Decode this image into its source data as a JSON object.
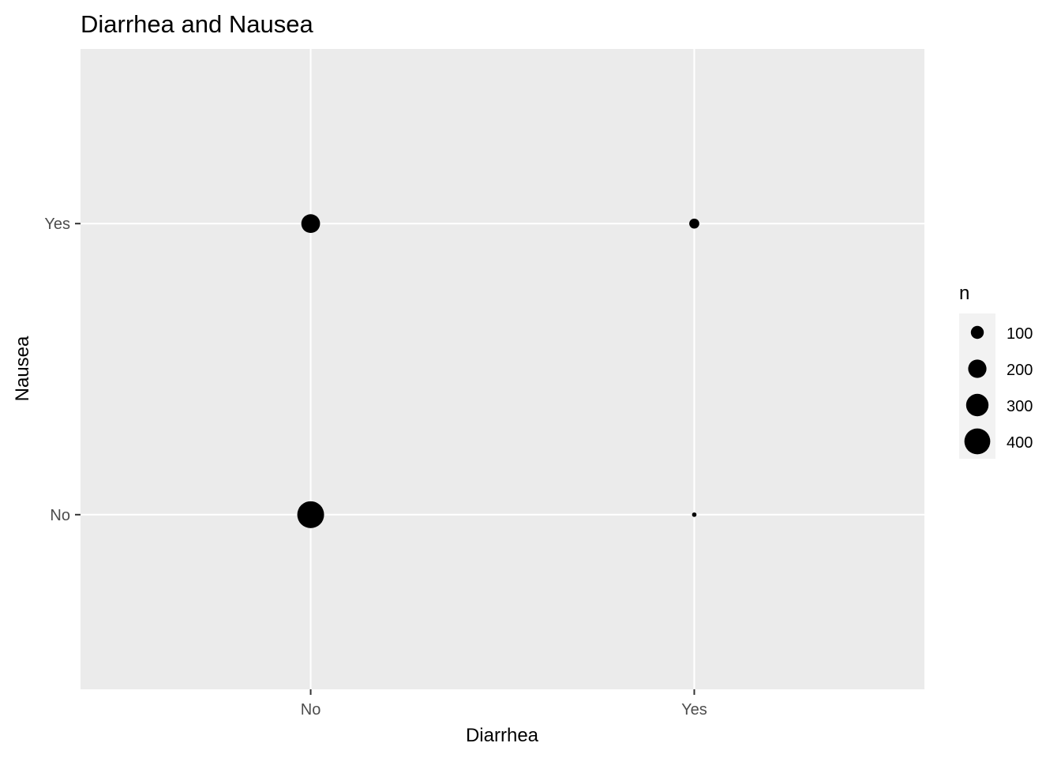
{
  "chart_data": {
    "type": "scatter",
    "title": "Diarrhea and Nausea",
    "xlabel": "Diarrhea",
    "ylabel": "Nausea",
    "x_categories": [
      "No",
      "Yes"
    ],
    "y_categories": [
      "No",
      "Yes"
    ],
    "grid": true,
    "points": [
      {
        "x": "No",
        "y": "Yes",
        "n": 210
      },
      {
        "x": "No",
        "y": "No",
        "n": 430
      },
      {
        "x": "Yes",
        "y": "Yes",
        "n": 60
      },
      {
        "x": "Yes",
        "y": "No",
        "n": 12
      }
    ],
    "legend": {
      "title": "n",
      "position": "right",
      "breaks": [
        {
          "label": "100",
          "value": 100
        },
        {
          "label": "200",
          "value": 200
        },
        {
          "label": "300",
          "value": 300
        },
        {
          "label": "400",
          "value": 400
        }
      ]
    },
    "colors": {
      "panel_background": "#ebebeb",
      "grid": "#ffffff",
      "point": "#000000",
      "legend_key_background": "#f2f2f2"
    }
  }
}
